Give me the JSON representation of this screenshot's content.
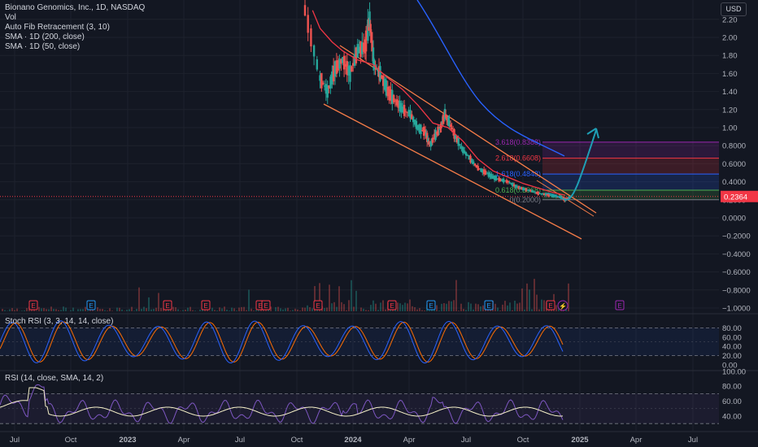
{
  "header": {
    "symbol_line": "Bionano Genomics, Inc., 1D, NASDAQ",
    "vol_label": "Vol",
    "fib_label": "Auto Fib Retracement (3, 10)",
    "sma200_label": "SMA · 1D (200, close)",
    "sma50_label": "SMA · 1D (50, close)",
    "currency": "USD"
  },
  "colors": {
    "background": "#131722",
    "candle_up": "#26a69a",
    "candle_down": "#ef5350",
    "sma200": "#2962ff",
    "sma50": "#f23645",
    "channel": "#f57c48",
    "projection_arrow": "#1e9fb5",
    "stoch_k": "#2962ff",
    "stoch_d": "#ff6d00",
    "rsi": "#7e57c2",
    "rsi_ma": "#f5f0c8",
    "last_price": "#f23645"
  },
  "indicator_labels": {
    "stoch": "Stoch RSI (3, 3, 14, 14, close)",
    "rsi": "RSI (14, close, SMA, 14, 2)"
  },
  "chart_data": [
    {
      "type": "line",
      "panel": "price",
      "title": "Bionano Genomics, Inc., 1D, NASDAQ",
      "x_ticks": [
        "Jul",
        "Oct",
        "2023",
        "Apr",
        "Jul",
        "Oct",
        "2024",
        "Apr",
        "Jul",
        "Oct",
        "2025",
        "Apr",
        "Jul"
      ],
      "y_ticks": [
        "2.20",
        "2.00",
        "1.80",
        "1.60",
        "1.40",
        "1.20",
        "1.00",
        "0.8000",
        "0.6000",
        "0.4000",
        "0.2000",
        "0.0000",
        "−0.2000",
        "−0.4000",
        "−0.6000",
        "−0.8000",
        "−1.0000"
      ],
      "ylim": [
        -1.0,
        2.3
      ],
      "last_price": "0.2364",
      "fib_levels": [
        {
          "label": "3.618(0.8388)",
          "value": 0.8388,
          "color": "#9c27b0"
        },
        {
          "label": "2.618(0.6608)",
          "value": 0.6608,
          "color": "#f23645"
        },
        {
          "label": "1.618(0.4848)",
          "value": 0.4848,
          "color": "#2962ff"
        },
        {
          "label": "0.618(0.3068)",
          "value": 0.3068,
          "color": "#4caf50"
        },
        {
          "label": "0(0.2000)",
          "value": 0.2,
          "color": "#787b86"
        }
      ],
      "earnings_markers": [
        "E",
        "E",
        "E",
        "E",
        "E",
        "E",
        "E",
        "E",
        "E",
        "E",
        "E",
        "E",
        "E",
        "E"
      ],
      "dividend_marker": "⚡",
      "price_series": [
        {
          "x": 0.0,
          "y": 2.3
        },
        {
          "x": 1.0,
          "y": 1.55
        },
        {
          "x": 1.5,
          "y": 1.4
        },
        {
          "x": 2.0,
          "y": 1.65
        },
        {
          "x": 2.5,
          "y": 1.75
        },
        {
          "x": 3.0,
          "y": 1.6
        },
        {
          "x": 3.5,
          "y": 1.85
        },
        {
          "x": 4.0,
          "y": 1.9
        },
        {
          "x": 4.3,
          "y": 2.2
        },
        {
          "x": 4.6,
          "y": 1.7
        },
        {
          "x": 5.0,
          "y": 1.6
        },
        {
          "x": 5.5,
          "y": 1.4
        },
        {
          "x": 6.0,
          "y": 1.3
        },
        {
          "x": 6.5,
          "y": 1.2
        },
        {
          "x": 7.0,
          "y": 1.15
        },
        {
          "x": 7.5,
          "y": 1.0
        },
        {
          "x": 8.0,
          "y": 0.95
        },
        {
          "x": 8.3,
          "y": 0.8
        },
        {
          "x": 8.6,
          "y": 0.9
        },
        {
          "x": 9.0,
          "y": 1.0
        },
        {
          "x": 9.3,
          "y": 1.15
        },
        {
          "x": 9.6,
          "y": 1.05
        },
        {
          "x": 10.0,
          "y": 0.9
        },
        {
          "x": 10.5,
          "y": 0.75
        },
        {
          "x": 11.0,
          "y": 0.65
        },
        {
          "x": 11.5,
          "y": 0.55
        },
        {
          "x": 12.0,
          "y": 0.5
        },
        {
          "x": 12.5,
          "y": 0.45
        },
        {
          "x": 13.0,
          "y": 0.42
        },
        {
          "x": 13.5,
          "y": 0.4
        },
        {
          "x": 14.0,
          "y": 0.35
        },
        {
          "x": 14.5,
          "y": 0.32
        },
        {
          "x": 15.0,
          "y": 0.3
        },
        {
          "x": 15.5,
          "y": 0.27
        },
        {
          "x": 16.0,
          "y": 0.26
        },
        {
          "x": 16.5,
          "y": 0.24
        },
        {
          "x": 17.0,
          "y": 0.23
        },
        {
          "x": 17.3,
          "y": 0.2
        },
        {
          "x": 17.6,
          "y": 0.24
        }
      ],
      "sma50_series": [
        {
          "x": 0.5,
          "y": 2.3
        },
        {
          "x": 1.0,
          "y": 2.1
        },
        {
          "x": 1.8,
          "y": 1.95
        },
        {
          "x": 2.5,
          "y": 1.85
        },
        {
          "x": 3.5,
          "y": 1.75
        },
        {
          "x": 4.5,
          "y": 1.7
        },
        {
          "x": 5.5,
          "y": 1.55
        },
        {
          "x": 6.5,
          "y": 1.42
        },
        {
          "x": 7.5,
          "y": 1.25
        },
        {
          "x": 8.5,
          "y": 1.05
        },
        {
          "x": 9.5,
          "y": 1.0
        },
        {
          "x": 10.5,
          "y": 0.85
        },
        {
          "x": 11.5,
          "y": 0.65
        },
        {
          "x": 12.5,
          "y": 0.52
        },
        {
          "x": 13.5,
          "y": 0.45
        },
        {
          "x": 14.5,
          "y": 0.38
        },
        {
          "x": 15.5,
          "y": 0.33
        },
        {
          "x": 16.5,
          "y": 0.28
        },
        {
          "x": 17.3,
          "y": 0.25
        }
      ],
      "sma200_series": [
        {
          "x": 9.0,
          "y": 2.3
        },
        {
          "x": 10.0,
          "y": 2.05
        },
        {
          "x": 11.0,
          "y": 1.75
        },
        {
          "x": 12.0,
          "y": 1.5
        },
        {
          "x": 13.0,
          "y": 1.28
        },
        {
          "x": 14.0,
          "y": 1.12
        },
        {
          "x": 15.0,
          "y": 0.98
        },
        {
          "x": 16.0,
          "y": 0.9
        },
        {
          "x": 17.0,
          "y": 0.82
        },
        {
          "x": 17.6,
          "y": 0.72
        }
      ]
    },
    {
      "type": "line",
      "panel": "stoch_rsi",
      "y_ticks": [
        "80.00",
        "60.00",
        "40.00",
        "20.00",
        "0.00"
      ],
      "ylim": [
        0,
        100
      ],
      "bands": [
        80,
        20
      ]
    },
    {
      "type": "line",
      "panel": "rsi",
      "y_ticks": [
        "100.00",
        "80.00",
        "60.00",
        "40.00"
      ],
      "ylim": [
        30,
        100
      ],
      "bands": [
        70,
        30
      ]
    }
  ]
}
